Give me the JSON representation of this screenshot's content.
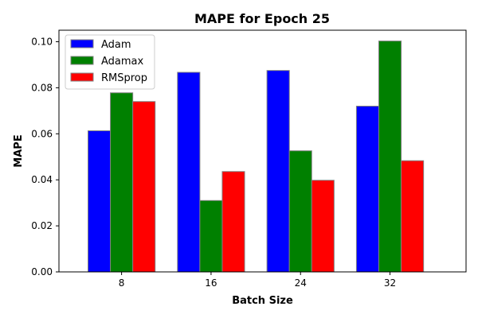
{
  "chart_data": {
    "type": "bar",
    "title": "MAPE for Epoch 25",
    "xlabel": "Batch Size",
    "ylabel": "MAPE",
    "categories": [
      "8",
      "16",
      "24",
      "32"
    ],
    "series": [
      {
        "name": "Adam",
        "color": "#0000ff",
        "values": [
          0.0613,
          0.0867,
          0.0875,
          0.072
        ]
      },
      {
        "name": "Adamax",
        "color": "#008000",
        "values": [
          0.0778,
          0.031,
          0.0526,
          0.1003
        ]
      },
      {
        "name": "RMSprop",
        "color": "#ff0000",
        "values": [
          0.074,
          0.0436,
          0.0398,
          0.0483
        ]
      }
    ],
    "ylim": [
      0.0,
      0.105
    ],
    "yticks": [
      "0.00",
      "0.02",
      "0.04",
      "0.06",
      "0.08",
      "0.10"
    ],
    "legend_position": "top-left",
    "grid": false,
    "bar_edge_color": "#808080"
  }
}
